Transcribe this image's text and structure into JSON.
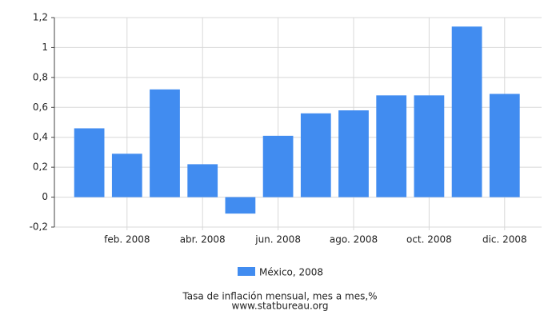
{
  "chart_data": {
    "type": "bar",
    "title": "Tasa de inflación mensual, mes a mes,%",
    "source": "www.statbureau.org",
    "categories": [
      null,
      "feb. 2008",
      null,
      "abr. 2008",
      null,
      "jun. 2008",
      null,
      "ago. 2008",
      null,
      "oct. 2008",
      null,
      "dic. 2008"
    ],
    "series": [
      {
        "name": "México, 2008",
        "color": "#418cf0",
        "values": [
          0.46,
          0.29,
          0.72,
          0.22,
          -0.11,
          0.41,
          0.56,
          0.58,
          0.68,
          0.68,
          1.14,
          0.69
        ]
      }
    ],
    "ylim": [
      -0.2,
      1.2
    ],
    "yticks": [
      {
        "value": -0.2,
        "label": "-0,2"
      },
      0,
      {
        "value": 0.2,
        "label": "0,2"
      },
      {
        "value": 0.4,
        "label": "0,4"
      },
      {
        "value": 0.6,
        "label": "0,6"
      },
      {
        "value": 0.8,
        "label": "0,8"
      },
      1,
      {
        "value": 1.2,
        "label": "1,2"
      }
    ],
    "grid": true,
    "legend": "bottom"
  }
}
